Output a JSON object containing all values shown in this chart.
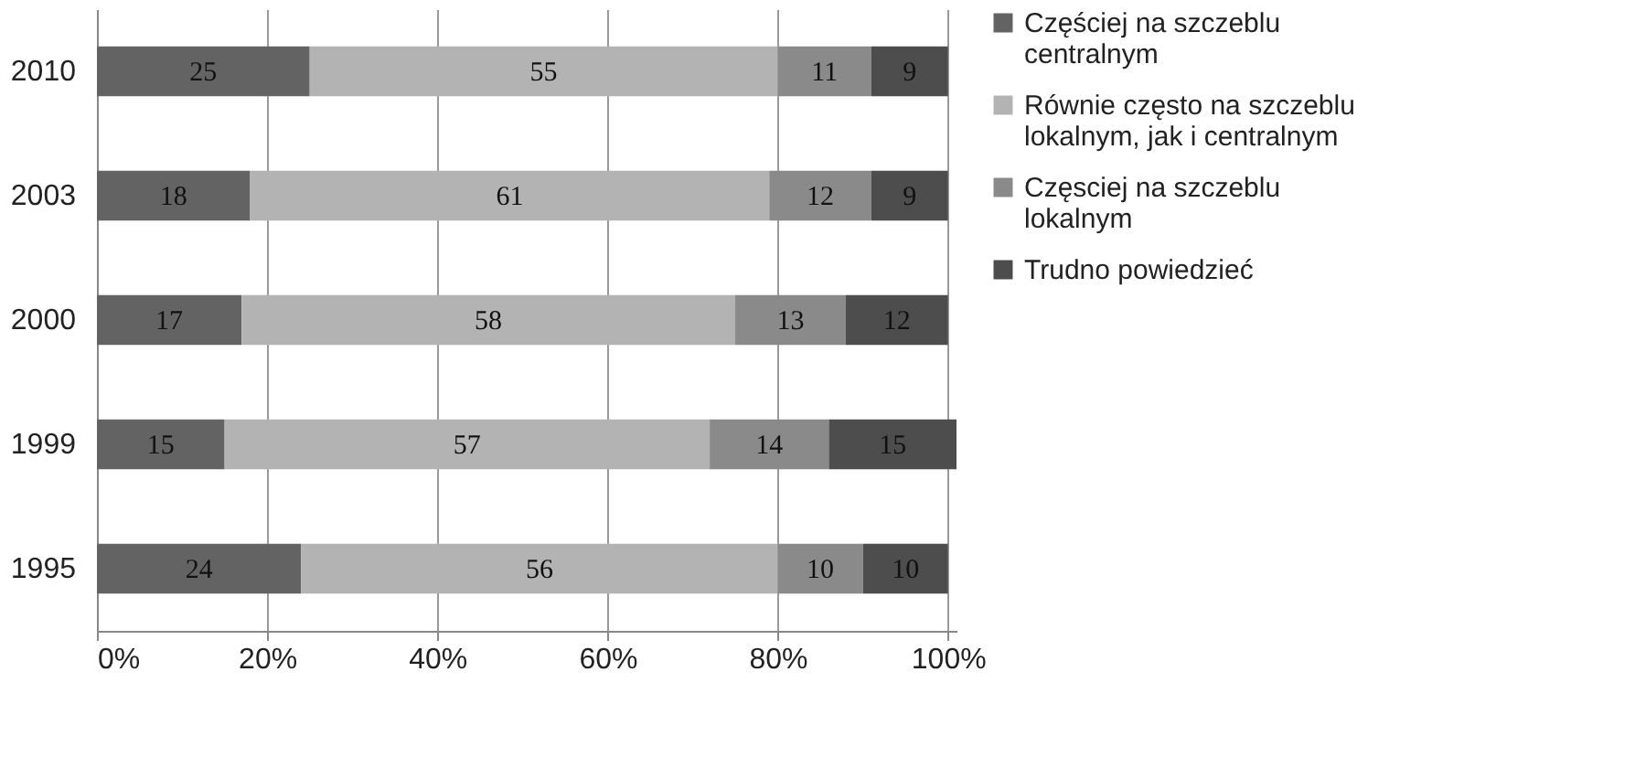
{
  "chart_data": {
    "type": "bar",
    "orientation": "horizontal",
    "stacked": true,
    "data_labels": true,
    "grid": "x",
    "legend": "right",
    "categories": [
      "2010",
      "2003",
      "2000",
      "1999",
      "1995"
    ],
    "series": [
      {
        "name": "Częściej na szczeblu centralnym",
        "color": "#636363",
        "values": [
          25,
          18,
          17,
          15,
          24
        ]
      },
      {
        "name": "Równie często na szczeblu lokalnym, jak i centralnym",
        "color": "#b3b3b3",
        "values": [
          55,
          61,
          58,
          57,
          56
        ]
      },
      {
        "name": "Częsciej na szczeblu lokalnym",
        "color": "#8a8a8a",
        "values": [
          11,
          12,
          13,
          14,
          10
        ]
      },
      {
        "name": "Trudno powiedzieć",
        "color": "#4d4d4d",
        "values": [
          9,
          9,
          12,
          15,
          10
        ]
      }
    ],
    "xlim": [
      0,
      101
    ],
    "xticks": [
      {
        "value": 0,
        "label": "0%"
      },
      {
        "value": 20,
        "label": "20%"
      },
      {
        "value": 40,
        "label": "40%"
      },
      {
        "value": 60,
        "label": "60%"
      },
      {
        "value": 80,
        "label": "80%"
      },
      {
        "value": 100,
        "label": "100%"
      }
    ]
  }
}
